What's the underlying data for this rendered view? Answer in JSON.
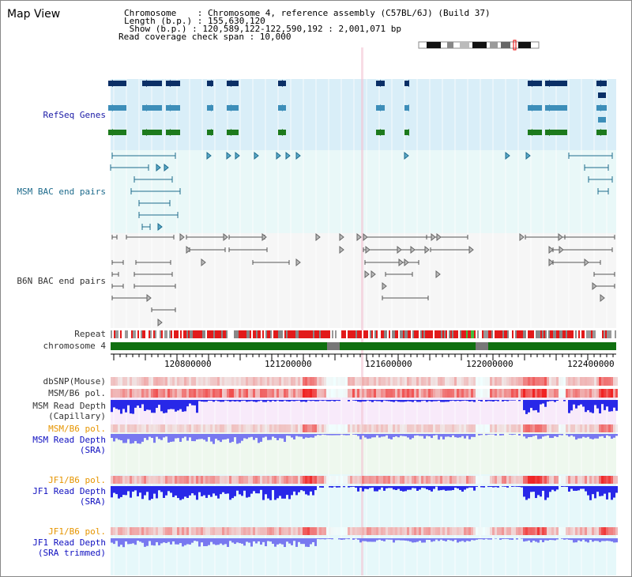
{
  "title": "Map View",
  "info": {
    "chromosome": "Chromosome    : Chromosome 4, reference assembly (C57BL/6J) (Build 37)",
    "length": "Length (b.p.) : 155,630,120",
    "show": " Show (b.p.) : 120,589,122-122,590,192 : 2,001,071 bp",
    "coverage": "Read coverage check span : 10,000"
  },
  "labels": {
    "refseq": "RefSeq Genes",
    "msm_bac": "MSM BAC end pairs",
    "b6n_bac": "B6N BAC end pairs",
    "repeat": "Repeat",
    "chromosome": "chromosome 4",
    "dbsnp": "dbSNP(Mouse)",
    "msm_b6_pol": "MSM/B6 pol.",
    "msm_depth_cap_1": "MSM Read Depth",
    "msm_depth_cap_2": "(Capillary)",
    "msm_b6_pol2": "MSM/B6 pol.",
    "msm_depth_sra_1": "MSM Read Depth",
    "msm_depth_sra_2": "(SRA)",
    "jf1_b6_pol": "JF1/B6 pol.",
    "jf1_depth_sra_1": "JF1 Read Depth",
    "jf1_depth_sra_2": "(SRA)",
    "jf1_b6_pol2": "JF1/B6 pol.",
    "jf1_depth_trim_1": "JF1 Read Depth",
    "jf1_depth_trim_2": "(SRA trimmed)"
  },
  "axis": {
    "ticks": [
      "120800000",
      "121200000",
      "121600000",
      "122000000",
      "122400000"
    ]
  },
  "colors": {
    "refseq_bg": "#d9eef8",
    "msm_bac_bg": "#e9f8f8",
    "b6n_bac_bg": "#f6f6f6",
    "chrom_green": "#107010",
    "gene_dark": "#0b2f66",
    "gene_mid": "#3d8eb9",
    "gene_green": "#1d7a1d",
    "msm_teal": "#1e6b8c",
    "b6n_gray": "#555555",
    "depth_blue": "#2828e8",
    "depth_light": "#7878f0"
  }
}
